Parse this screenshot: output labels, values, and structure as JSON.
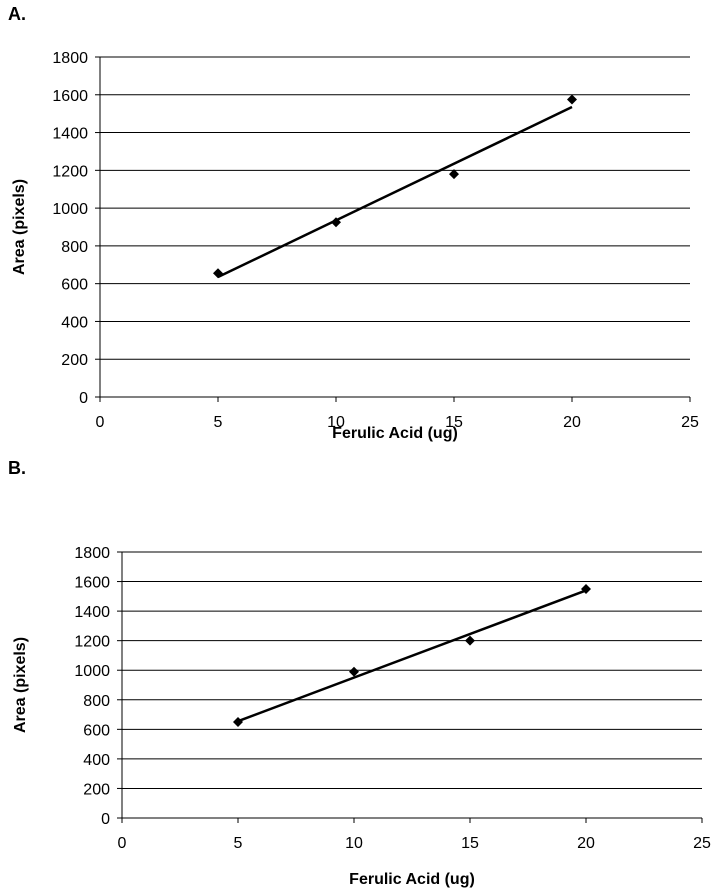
{
  "chart_data": [
    {
      "panel": "A.",
      "type": "scatter",
      "xlabel": "Ferulic Acid (ug)",
      "ylabel": "Area (pixels)",
      "xlim": [
        0,
        25
      ],
      "ylim": [
        0,
        1800
      ],
      "xticks": [
        0,
        5,
        10,
        15,
        20,
        25
      ],
      "yticks": [
        0,
        200,
        400,
        600,
        800,
        1000,
        1200,
        1400,
        1600,
        1800
      ],
      "grid": "horizontal",
      "series": [
        {
          "x": [
            5,
            10,
            15,
            20
          ],
          "y": [
            655,
            925,
            1180,
            1575
          ],
          "marker": "diamond"
        }
      ],
      "trendline": {
        "x": [
          5,
          20
        ],
        "y": [
          635,
          1535
        ]
      }
    },
    {
      "panel": "B.",
      "type": "scatter",
      "xlabel": "Ferulic Acid (ug)",
      "ylabel": "Area (pixels)",
      "xlim": [
        0,
        25
      ],
      "ylim": [
        0,
        1800
      ],
      "xticks": [
        0,
        5,
        10,
        15,
        20,
        25
      ],
      "yticks": [
        0,
        200,
        400,
        600,
        800,
        1000,
        1200,
        1400,
        1600,
        1800
      ],
      "grid": "horizontal",
      "series": [
        {
          "x": [
            5,
            10,
            15,
            20
          ],
          "y": [
            650,
            990,
            1200,
            1550
          ],
          "marker": "diamond"
        }
      ],
      "trendline": {
        "x": [
          5,
          20
        ],
        "y": [
          655,
          1540
        ]
      }
    }
  ]
}
